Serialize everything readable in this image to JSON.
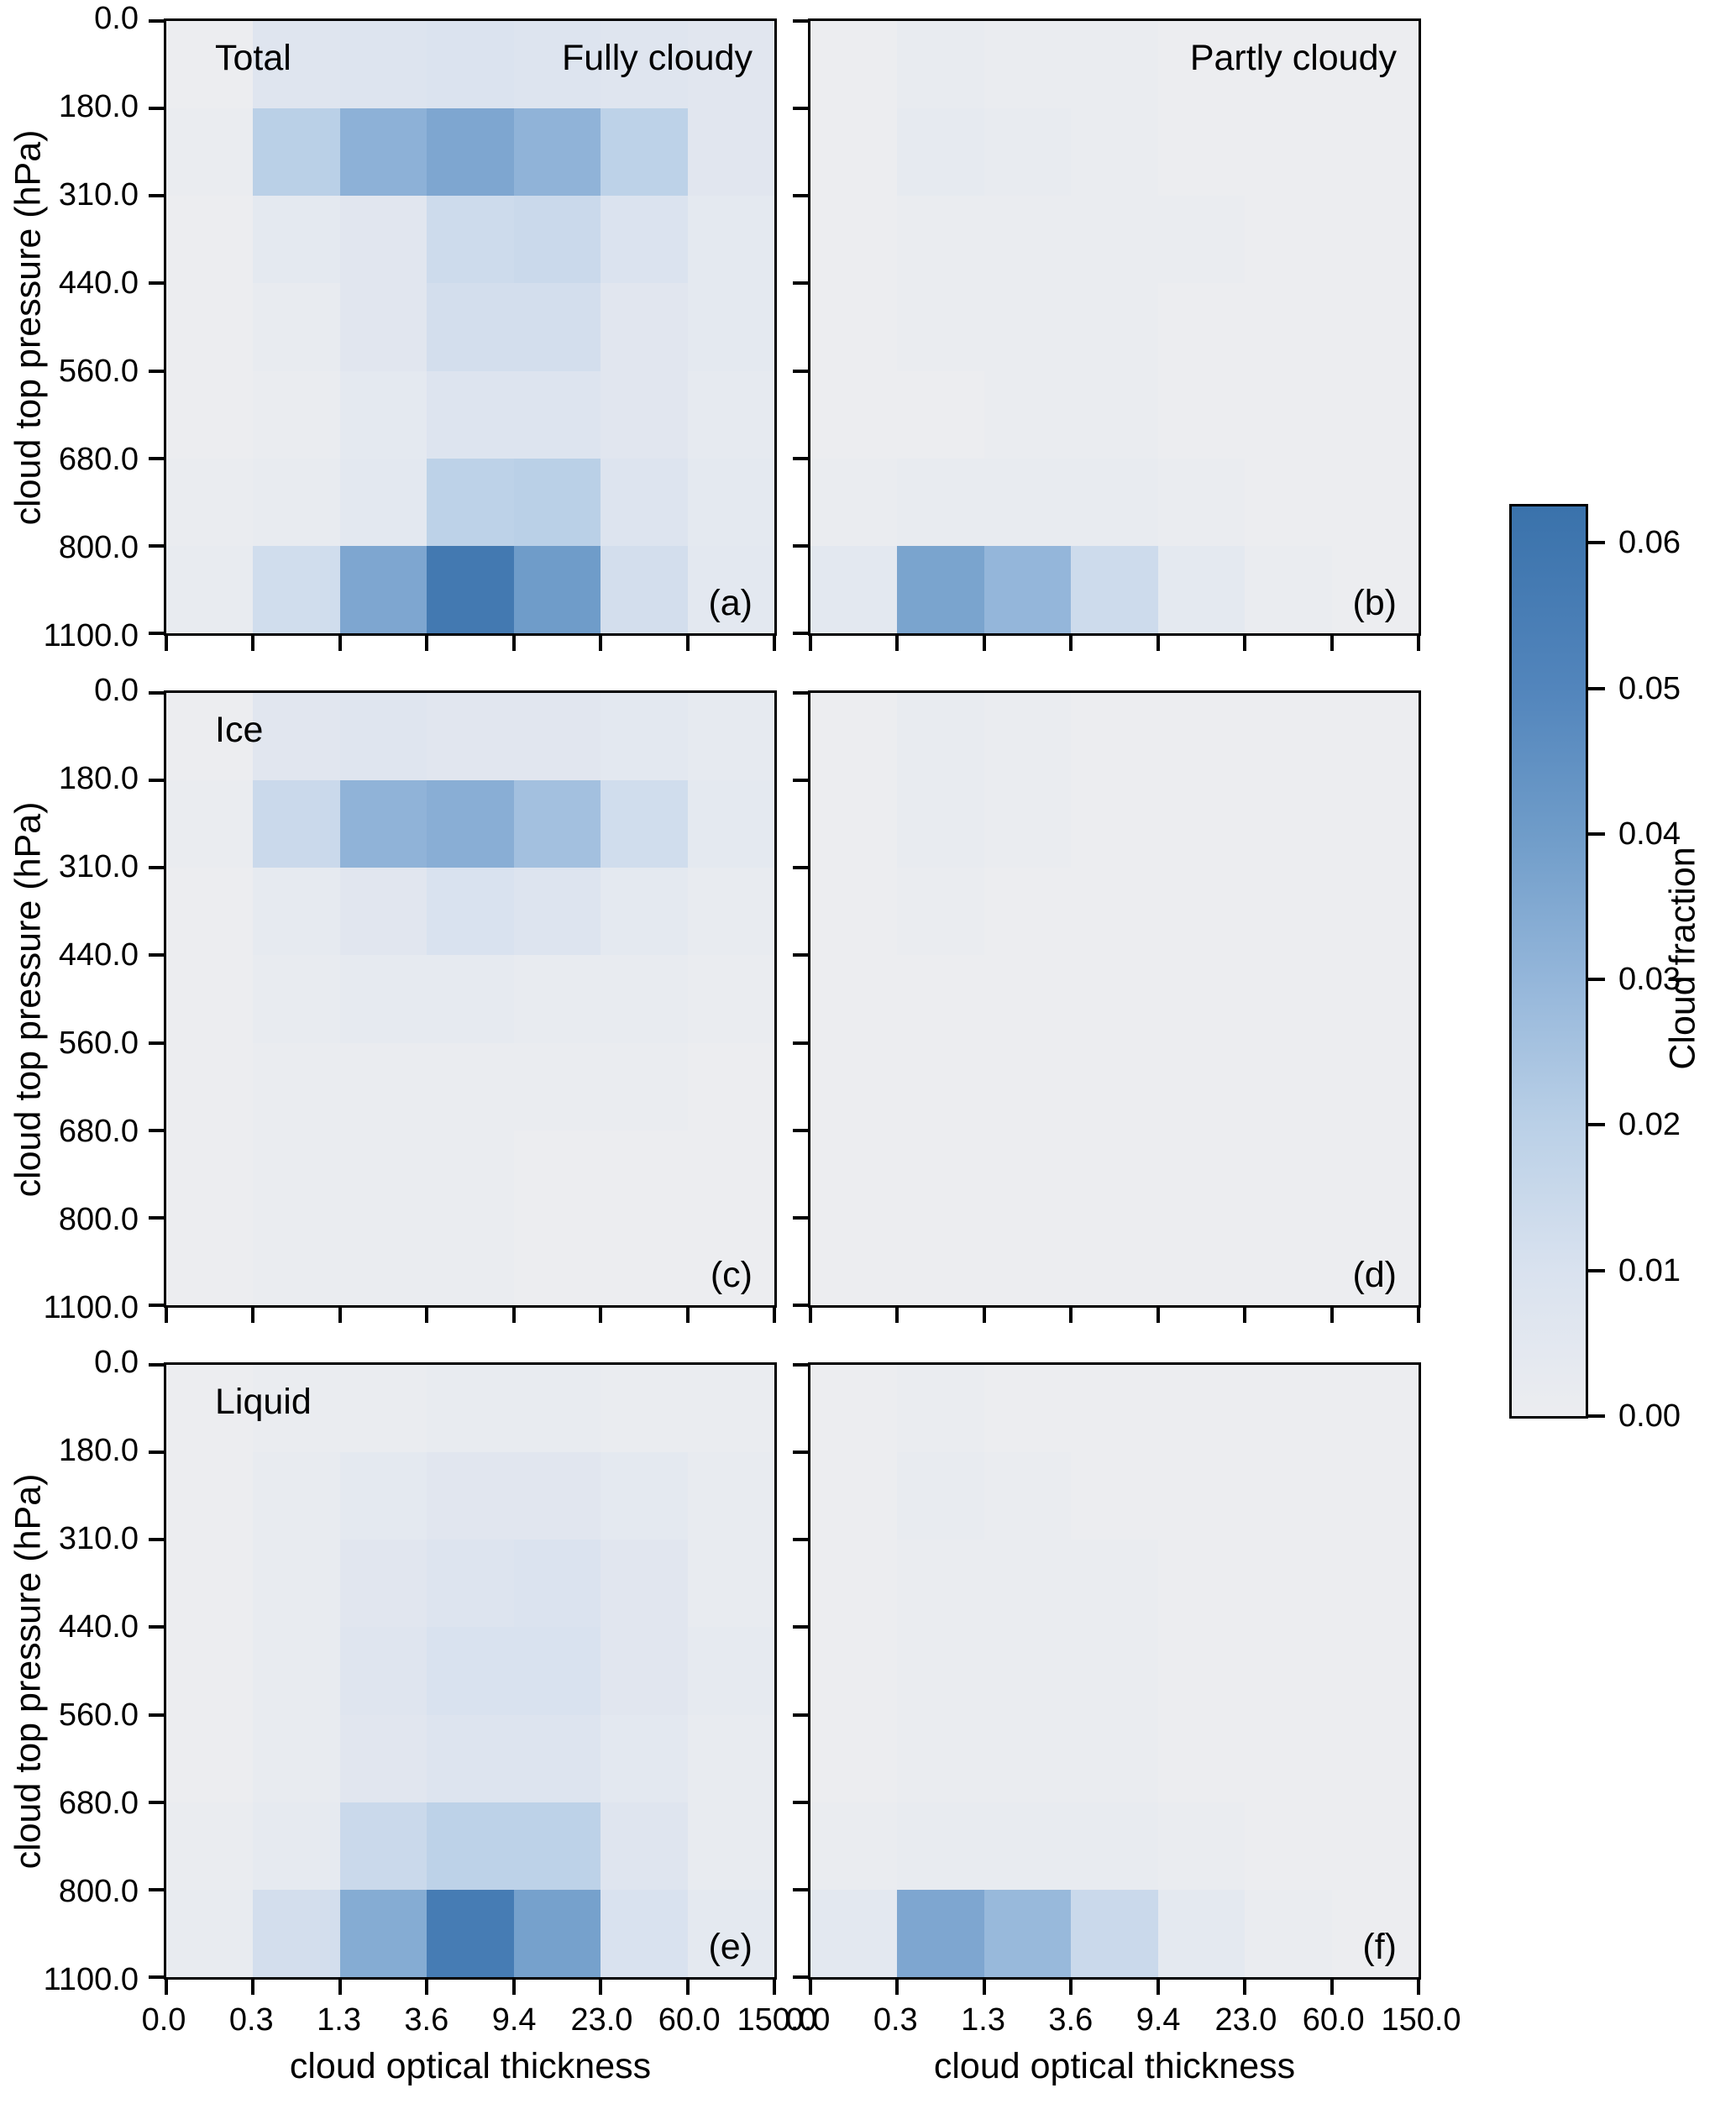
{
  "axes": {
    "x": {
      "label": "cloud optical thickness",
      "tick_labels": [
        "0.0",
        "0.3",
        "1.3",
        "3.6",
        "9.4",
        "23.0",
        "60.0",
        "150.0"
      ]
    },
    "y": {
      "label": "cloud top pressure (hPa)",
      "tick_labels": [
        "0.0",
        "180.0",
        "310.0",
        "440.0",
        "560.0",
        "680.0",
        "800.0",
        "1100.0"
      ]
    }
  },
  "colorbar": {
    "label": "Cloud fraction",
    "vmin": 0.0,
    "vmax": 0.0625,
    "ticks": [
      {
        "label": "0.06",
        "value": 0.06
      },
      {
        "label": "0.05",
        "value": 0.05
      },
      {
        "label": "0.04",
        "value": 0.04
      },
      {
        "label": "0.03",
        "value": 0.03
      },
      {
        "label": "0.02",
        "value": 0.02
      },
      {
        "label": "0.01",
        "value": 0.01
      },
      {
        "label": "0.00",
        "value": 0.0
      }
    ],
    "color_stops": [
      {
        "value": 0.0,
        "color": "#ecedf0"
      },
      {
        "value": 0.01,
        "color": "#d9e2ef"
      },
      {
        "value": 0.02,
        "color": "#bad0e7"
      },
      {
        "value": 0.03,
        "color": "#94b6da"
      },
      {
        "value": 0.04,
        "color": "#6f9cc9"
      },
      {
        "value": 0.05,
        "color": "#5285bc"
      },
      {
        "value": 0.0625,
        "color": "#3a72ab"
      }
    ]
  },
  "chart_data": {
    "type": "heatmap",
    "x_bin_edges": [
      0.0,
      0.3,
      1.3,
      3.6,
      9.4,
      23.0,
      60.0,
      150.0
    ],
    "y_bin_edges": [
      0.0,
      180.0,
      310.0,
      440.0,
      560.0,
      680.0,
      800.0,
      1100.0
    ],
    "value_name": "Cloud fraction",
    "column_headers": [
      "Fully cloudy",
      "Partly cloudy"
    ],
    "row_headers": [
      "Total",
      "Ice",
      "Liquid"
    ],
    "panels": [
      {
        "id": "a",
        "letter": "(a)",
        "label_left": "Total",
        "label_right": "Fully cloudy",
        "values": [
          [
            0.0,
            0.007,
            0.008,
            0.009,
            0.008,
            0.007,
            0.006
          ],
          [
            0.001,
            0.02,
            0.032,
            0.036,
            0.031,
            0.019,
            0.006
          ],
          [
            0.0,
            0.004,
            0.006,
            0.014,
            0.015,
            0.009,
            0.004
          ],
          [
            0.0,
            0.002,
            0.006,
            0.012,
            0.012,
            0.006,
            0.004
          ],
          [
            0.0,
            0.001,
            0.004,
            0.008,
            0.008,
            0.006,
            0.003
          ],
          [
            0.001,
            0.002,
            0.005,
            0.019,
            0.02,
            0.008,
            0.004
          ],
          [
            0.002,
            0.013,
            0.036,
            0.058,
            0.04,
            0.012,
            0.005
          ]
        ]
      },
      {
        "id": "b",
        "letter": "(b)",
        "label_left": null,
        "label_right": "Partly cloudy",
        "values": [
          [
            0.0,
            0.002,
            0.001,
            0.001,
            0.0,
            0.0,
            0.0
          ],
          [
            0.0,
            0.003,
            0.002,
            0.001,
            0.0,
            0.0,
            0.0
          ],
          [
            0.0,
            0.001,
            0.001,
            0.001,
            0.001,
            0.0,
            0.0
          ],
          [
            0.0,
            0.001,
            0.001,
            0.001,
            0.0,
            0.0,
            0.0
          ],
          [
            0.0,
            0.0,
            0.001,
            0.001,
            0.0,
            0.0,
            0.0
          ],
          [
            0.001,
            0.002,
            0.002,
            0.002,
            0.001,
            0.0,
            0.0
          ],
          [
            0.005,
            0.037,
            0.03,
            0.014,
            0.004,
            0.001,
            0.0
          ]
        ]
      },
      {
        "id": "c",
        "letter": "(c)",
        "label_left": "Ice",
        "label_right": null,
        "values": [
          [
            0.0,
            0.006,
            0.007,
            0.006,
            0.006,
            0.005,
            0.003
          ],
          [
            0.001,
            0.015,
            0.031,
            0.033,
            0.026,
            0.013,
            0.004
          ],
          [
            0.0,
            0.003,
            0.006,
            0.01,
            0.008,
            0.004,
            0.002
          ],
          [
            0.0,
            0.002,
            0.003,
            0.003,
            0.002,
            0.002,
            0.001
          ],
          [
            0.0,
            0.001,
            0.001,
            0.001,
            0.001,
            0.001,
            0.0
          ],
          [
            0.0,
            0.001,
            0.001,
            0.001,
            0.0,
            0.0,
            0.0
          ],
          [
            0.0,
            0.001,
            0.001,
            0.001,
            0.0,
            0.0,
            0.0
          ]
        ]
      },
      {
        "id": "d",
        "letter": "(d)",
        "label_left": null,
        "label_right": null,
        "values": [
          [
            0.0,
            0.002,
            0.001,
            0.0,
            0.0,
            0.0,
            0.0
          ],
          [
            0.0,
            0.002,
            0.001,
            0.0,
            0.0,
            0.0,
            0.0
          ],
          [
            0.0,
            0.001,
            0.0,
            0.0,
            0.0,
            0.0,
            0.0
          ],
          [
            0.0,
            0.0,
            0.0,
            0.0,
            0.0,
            0.0,
            0.0
          ],
          [
            0.0,
            0.0,
            0.0,
            0.0,
            0.0,
            0.0,
            0.0
          ],
          [
            0.0,
            0.0,
            0.0,
            0.0,
            0.0,
            0.0,
            0.0
          ],
          [
            0.0,
            0.0,
            0.0,
            0.0,
            0.0,
            0.0,
            0.0
          ]
        ]
      },
      {
        "id": "e",
        "letter": "(e)",
        "label_left": "Liquid",
        "label_right": null,
        "values": [
          [
            0.0,
            0.001,
            0.001,
            0.002,
            0.002,
            0.001,
            0.001
          ],
          [
            0.0,
            0.002,
            0.004,
            0.006,
            0.006,
            0.004,
            0.002
          ],
          [
            0.0,
            0.002,
            0.006,
            0.008,
            0.009,
            0.006,
            0.002
          ],
          [
            0.0,
            0.002,
            0.007,
            0.01,
            0.01,
            0.006,
            0.003
          ],
          [
            0.0,
            0.002,
            0.006,
            0.008,
            0.008,
            0.005,
            0.002
          ],
          [
            0.001,
            0.003,
            0.015,
            0.019,
            0.019,
            0.007,
            0.002
          ],
          [
            0.002,
            0.012,
            0.034,
            0.056,
            0.038,
            0.01,
            0.004
          ]
        ]
      },
      {
        "id": "f",
        "letter": "(f)",
        "label_left": null,
        "label_right": null,
        "values": [
          [
            0.0,
            0.001,
            0.0,
            0.0,
            0.0,
            0.0,
            0.0
          ],
          [
            0.0,
            0.002,
            0.001,
            0.0,
            0.0,
            0.0,
            0.0
          ],
          [
            0.0,
            0.001,
            0.001,
            0.001,
            0.0,
            0.0,
            0.0
          ],
          [
            0.0,
            0.001,
            0.001,
            0.001,
            0.0,
            0.0,
            0.0
          ],
          [
            0.0,
            0.001,
            0.001,
            0.001,
            0.0,
            0.0,
            0.0
          ],
          [
            0.001,
            0.002,
            0.002,
            0.002,
            0.001,
            0.0,
            0.0
          ],
          [
            0.005,
            0.036,
            0.029,
            0.015,
            0.004,
            0.001,
            0.0
          ]
        ]
      }
    ]
  }
}
